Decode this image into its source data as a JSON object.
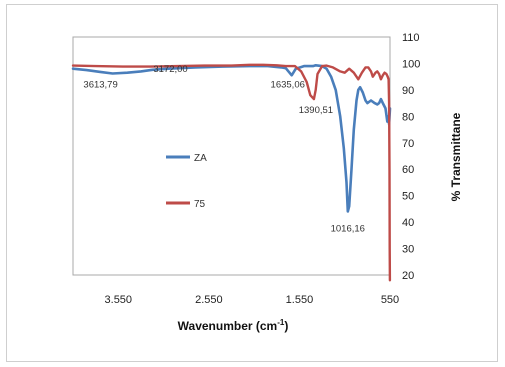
{
  "chart_data": {
    "type": "line",
    "xlabel": "Wavenumber (cm",
    "xlabel_sup": "-1",
    "xlabel_close": ")",
    "ylabel": "% Transmittane",
    "xlim": [
      4050,
      550
    ],
    "ylim": [
      20,
      110
    ],
    "x_reversed": true,
    "y_axis_side": "right",
    "grid": false,
    "legend_position": "center-left",
    "x_ticks": [
      3550,
      2550,
      1550,
      550
    ],
    "x_tick_labels": [
      "3.550",
      "2.550",
      "1.550",
      "550"
    ],
    "y_ticks": [
      20,
      30,
      40,
      50,
      60,
      70,
      80,
      90,
      100,
      110
    ],
    "y_tick_labels": [
      "20",
      "30",
      "40",
      "50",
      "60",
      "70",
      "80",
      "90",
      "100",
      "110"
    ],
    "series": [
      {
        "name": "ZA",
        "color": "#4a7ebb",
        "x": [
          4050,
          3900,
          3750,
          3613,
          3450,
          3300,
          3172,
          3000,
          2700,
          2400,
          2100,
          1900,
          1750,
          1700,
          1635,
          1590,
          1500,
          1450,
          1400,
          1370,
          1300,
          1250,
          1200,
          1150,
          1100,
          1060,
          1030,
          1016,
          1000,
          975,
          950,
          920,
          900,
          880,
          850,
          820,
          800,
          760,
          720,
          690,
          670,
          650,
          630,
          600,
          580,
          570,
          560,
          550
        ],
        "y": [
          98,
          97.5,
          96.8,
          96.2,
          96.5,
          97,
          97.6,
          98,
          98.5,
          98.8,
          99,
          99,
          98.5,
          98.2,
          95.5,
          98,
          99,
          99,
          99,
          99.3,
          99,
          98,
          95,
          90,
          80,
          68,
          55,
          44,
          46,
          60,
          75,
          86,
          90,
          91,
          89,
          86,
          85,
          86,
          85,
          84.5,
          85,
          86.5,
          85,
          83,
          78,
          80,
          77,
          83
        ]
      },
      {
        "name": "75",
        "color": "#be4b48",
        "x": [
          4050,
          3800,
          3500,
          3200,
          2900,
          2600,
          2300,
          2100,
          1950,
          1800,
          1700,
          1600,
          1530,
          1470,
          1430,
          1390,
          1370,
          1350,
          1300,
          1250,
          1180,
          1100,
          1050,
          1000,
          950,
          900,
          860,
          820,
          790,
          760,
          740,
          710,
          690,
          670,
          650,
          630,
          610,
          590,
          575,
          565,
          560,
          556,
          553,
          551
        ],
        "y": [
          99.2,
          99,
          98.8,
          98.8,
          99,
          99.2,
          99.2,
          99.5,
          99.5,
          99.3,
          99,
          99,
          97,
          93,
          88,
          86.5,
          90,
          96,
          99,
          99.2,
          98.5,
          97,
          96.5,
          98,
          96.5,
          94,
          96.5,
          98.5,
          98.5,
          97,
          95,
          96.5,
          97,
          96,
          94,
          95.5,
          96.5,
          96,
          95,
          94,
          85,
          60,
          30,
          18
        ]
      }
    ],
    "annotations": [
      {
        "text": "3613,79",
        "x": 3613,
        "y": 96.2
      },
      {
        "text": "3172,00",
        "x": 3172,
        "y": 97.6
      },
      {
        "text": "1635,06",
        "x": 1635,
        "y": 95.5
      },
      {
        "text": "1390,51",
        "x": 1390,
        "y": 86.5
      },
      {
        "text": "1016,16",
        "x": 1016,
        "y": 44
      }
    ]
  }
}
